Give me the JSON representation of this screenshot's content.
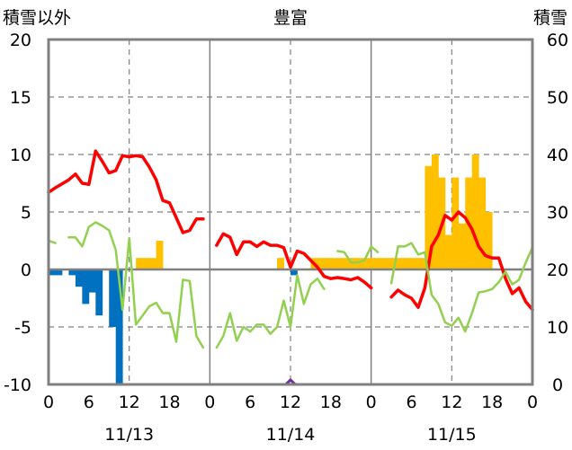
{
  "chart_data": {
    "type": "line",
    "title": "豊富",
    "left_axis_label": "積雪以外",
    "right_axis_label": "積雪",
    "left_ylim": [
      -10,
      20
    ],
    "right_ylim": [
      0,
      60
    ],
    "left_ticks": [
      "20",
      "15",
      "10",
      "5",
      "0",
      "-5",
      "-10"
    ],
    "right_ticks": [
      "60",
      "50",
      "40",
      "30",
      "20",
      "10",
      "0"
    ],
    "x_range_hours": [
      0,
      72
    ],
    "x_tick_labels": [
      "0",
      "6",
      "12",
      "18",
      "0",
      "6",
      "12",
      "18",
      "0",
      "6",
      "12",
      "18",
      "0"
    ],
    "date_labels": [
      {
        "hour": 12,
        "label": "11/13"
      },
      {
        "hour": 36,
        "label": "11/14"
      },
      {
        "hour": 60,
        "label": "11/15"
      }
    ],
    "grid": {
      "dashed_vertical_hours": [
        12,
        36,
        60
      ],
      "solid_vertical_hours": [
        24,
        48
      ],
      "horizontal_values": [
        15,
        10,
        5,
        -5
      ]
    },
    "series": [
      {
        "key": "red",
        "color": "#ff0000",
        "width": 3.5,
        "segments": [
          [
            [
              0,
              6.7
            ],
            [
              1,
              7.1
            ],
            [
              3,
              7.8
            ],
            [
              4,
              8.3
            ],
            [
              5,
              7.5
            ],
            [
              6,
              7.4
            ],
            [
              7,
              10.3
            ],
            [
              8,
              9.4
            ],
            [
              9,
              8.4
            ],
            [
              10,
              8.6
            ],
            [
              11,
              9.9
            ],
            [
              12,
              9.8
            ],
            [
              13,
              9.9
            ],
            [
              14,
              9.8
            ],
            [
              15,
              8.9
            ],
            [
              16,
              7.8
            ],
            [
              17,
              6.0
            ],
            [
              18,
              5.8
            ],
            [
              19,
              4.5
            ],
            [
              20,
              3.2
            ],
            [
              21,
              3.4
            ],
            [
              22,
              4.4
            ],
            [
              23,
              4.4
            ]
          ],
          [
            [
              25,
              2.1
            ],
            [
              26,
              3.1
            ],
            [
              27,
              2.8
            ],
            [
              28,
              1.3
            ],
            [
              29,
              2.4
            ],
            [
              30,
              2.4
            ],
            [
              31,
              2.0
            ],
            [
              32,
              2.4
            ],
            [
              33,
              2.1
            ],
            [
              34,
              2.1
            ],
            [
              35,
              1.9
            ],
            [
              36,
              0.2
            ],
            [
              37,
              1.6
            ],
            [
              38,
              1.4
            ],
            [
              39,
              0.8
            ],
            [
              40,
              0.2
            ],
            [
              41,
              -0.6
            ],
            [
              42,
              -0.8
            ],
            [
              43,
              -0.7
            ],
            [
              44,
              -0.8
            ],
            [
              45,
              -0.9
            ],
            [
              46,
              -0.7
            ],
            [
              47,
              -1.1
            ],
            [
              48,
              -1.6
            ]
          ],
          [
            [
              51,
              -2.4
            ],
            [
              52,
              -1.8
            ],
            [
              53,
              -2.2
            ],
            [
              54,
              -2.5
            ],
            [
              55,
              -3.3
            ],
            [
              56,
              -1.6
            ],
            [
              57,
              2.0
            ],
            [
              58,
              3.0
            ],
            [
              59,
              4.7
            ],
            [
              60,
              4.3
            ],
            [
              61,
              5.0
            ],
            [
              62,
              4.5
            ],
            [
              63,
              3.5
            ],
            [
              64,
              2.0
            ],
            [
              65,
              1.2
            ],
            [
              66,
              1.0
            ],
            [
              67,
              1.0
            ],
            [
              68,
              -0.8
            ],
            [
              69,
              -2.1
            ],
            [
              70,
              -1.6
            ],
            [
              71,
              -2.8
            ],
            [
              72,
              -3.5
            ]
          ]
        ]
      },
      {
        "key": "green",
        "color": "#92d050",
        "width": 2.5,
        "segments": [
          [
            [
              0,
              2.5
            ],
            [
              1,
              2.3
            ]
          ],
          [
            [
              3,
              2.8
            ],
            [
              4,
              2.8
            ],
            [
              5,
              2.0
            ],
            [
              6,
              3.7
            ],
            [
              7,
              4.1
            ],
            [
              8,
              3.8
            ],
            [
              9,
              3.4
            ],
            [
              10,
              1.7
            ],
            [
              11,
              -3.5
            ],
            [
              12,
              2.7
            ],
            [
              13,
              -4.8
            ],
            [
              14,
              -4.0
            ],
            [
              15,
              -3.2
            ],
            [
              16,
              -2.9
            ],
            [
              17,
              -3.8
            ],
            [
              18,
              -3.8
            ],
            [
              19,
              -6.3
            ],
            [
              20,
              -0.9
            ],
            [
              21,
              -1.0
            ],
            [
              22,
              -5.8
            ],
            [
              23,
              -6.8
            ]
          ],
          [
            [
              25,
              -6.8
            ],
            [
              26,
              -5.8
            ],
            [
              27,
              -3.8
            ],
            [
              28,
              -6.2
            ],
            [
              29,
              -5.0
            ],
            [
              30,
              -5.4
            ],
            [
              31,
              -4.8
            ],
            [
              32,
              -4.8
            ],
            [
              33,
              -5.6
            ],
            [
              34,
              -5.0
            ],
            [
              35,
              -2.7
            ],
            [
              36,
              -5.0
            ],
            [
              37,
              -0.5
            ],
            [
              38,
              -3.0
            ],
            [
              39,
              -1.3
            ],
            [
              40,
              -0.8
            ],
            [
              41,
              -1.7
            ]
          ],
          [
            [
              43,
              1.6
            ],
            [
              44,
              1.5
            ],
            [
              45,
              0.6
            ],
            [
              46,
              0.6
            ],
            [
              47,
              0.8
            ],
            [
              48,
              2.0
            ],
            [
              49,
              1.5
            ]
          ],
          [
            [
              51,
              -1.2
            ],
            [
              52,
              2.0
            ],
            [
              53,
              2.0
            ],
            [
              54,
              2.3
            ],
            [
              55,
              1.3
            ],
            [
              56,
              1.5
            ],
            [
              57,
              -2.2
            ],
            [
              58,
              -3.0
            ],
            [
              59,
              -4.6
            ],
            [
              60,
              -4.9
            ],
            [
              61,
              -4.2
            ],
            [
              62,
              -5.4
            ],
            [
              63,
              -3.8
            ],
            [
              64,
              -2.0
            ],
            [
              65,
              -1.9
            ],
            [
              66,
              -1.7
            ],
            [
              67,
              -1.1
            ],
            [
              68,
              -0.2
            ],
            [
              69,
              -1.3
            ],
            [
              70,
              -0.9
            ],
            [
              71,
              0.6
            ],
            [
              72,
              1.9
            ]
          ]
        ]
      },
      {
        "key": "purple",
        "color": "#7030a0",
        "width": 3,
        "segments": [
          [
            [
              0,
              -10
            ],
            [
              35.3,
              -10
            ],
            [
              36,
              -9.6
            ],
            [
              36.7,
              -10
            ],
            [
              72,
              -10
            ]
          ]
        ]
      }
    ],
    "blue_bars": {
      "color": "#0070c0",
      "axis": "left",
      "values": [
        [
          0,
          -0.5
        ],
        [
          1,
          -0.5
        ],
        [
          2,
          0
        ],
        [
          3,
          -0.5
        ],
        [
          4,
          -1.5
        ],
        [
          5,
          -3.0
        ],
        [
          6,
          -2.0
        ],
        [
          7,
          -4.0
        ],
        [
          8,
          0
        ],
        [
          9,
          -5.0
        ],
        [
          10,
          -10.0
        ],
        [
          36,
          -0.5
        ]
      ]
    },
    "yellow_bars": {
      "color": "#ffc000",
      "axis": "right",
      "values": [
        [
          13,
          22
        ],
        [
          14,
          22
        ],
        [
          15,
          22
        ],
        [
          16,
          25
        ],
        [
          34,
          22
        ],
        [
          39,
          22
        ],
        [
          40,
          22
        ],
        [
          41,
          22
        ],
        [
          42,
          22
        ],
        [
          43,
          22
        ],
        [
          44,
          22
        ],
        [
          45,
          22
        ],
        [
          46,
          22
        ],
        [
          47,
          22
        ],
        [
          48,
          22
        ],
        [
          49,
          22
        ],
        [
          50,
          22
        ],
        [
          51,
          22
        ],
        [
          52,
          22
        ],
        [
          53,
          22
        ],
        [
          54,
          22
        ],
        [
          55,
          22
        ],
        [
          56,
          38
        ],
        [
          57,
          40
        ],
        [
          58,
          36
        ],
        [
          59,
          26
        ],
        [
          60,
          36
        ],
        [
          61,
          28
        ],
        [
          62,
          36
        ],
        [
          63,
          40
        ],
        [
          64,
          36
        ],
        [
          65,
          30
        ]
      ]
    }
  }
}
